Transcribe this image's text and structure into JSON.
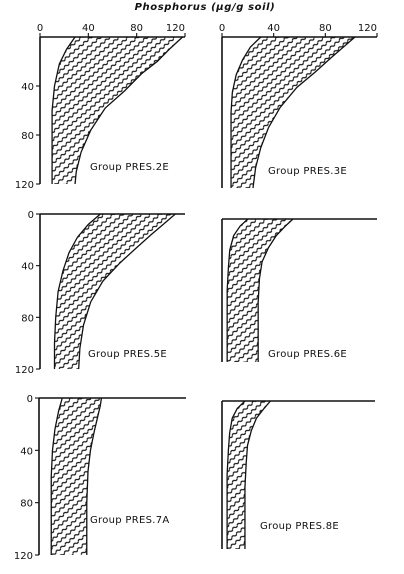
{
  "title": "Phosphorus (µg/g soil)",
  "colors": {
    "ink": "#111111",
    "paper": "#ffffff"
  },
  "chart_data": [
    {
      "type": "area",
      "title": "Group PRES.2E",
      "x_ticks": [
        "0",
        "40",
        "80",
        "120"
      ],
      "y_ticks": [
        "40",
        "80",
        "120"
      ],
      "xlim": [
        0,
        120
      ],
      "ylim": [
        0,
        120
      ],
      "left": [
        [
          29,
          0
        ],
        [
          22,
          10
        ],
        [
          16,
          22
        ],
        [
          12,
          40
        ],
        [
          10,
          60
        ],
        [
          10,
          80
        ],
        [
          10,
          120
        ]
      ],
      "right": [
        [
          118,
          0
        ],
        [
          107,
          10
        ],
        [
          97,
          20
        ],
        [
          84,
          30
        ],
        [
          70,
          44
        ],
        [
          54,
          58
        ],
        [
          42,
          76
        ],
        [
          34,
          94
        ],
        [
          30,
          110
        ],
        [
          29,
          120
        ]
      ]
    },
    {
      "type": "area",
      "title": "Group PRES.3E",
      "x_ticks": [
        "0",
        "40",
        "80",
        "120"
      ],
      "y_ticks": [],
      "xlim": [
        0,
        120
      ],
      "ylim": [
        0,
        120
      ],
      "left": [
        [
          30,
          0
        ],
        [
          22,
          8
        ],
        [
          16,
          18
        ],
        [
          11,
          30
        ],
        [
          8,
          44
        ],
        [
          7,
          60
        ],
        [
          7,
          80
        ],
        [
          7,
          120
        ]
      ],
      "right": [
        [
          103,
          0
        ],
        [
          94,
          8
        ],
        [
          85,
          16
        ],
        [
          72,
          28
        ],
        [
          58,
          40
        ],
        [
          45,
          56
        ],
        [
          36,
          72
        ],
        [
          30,
          88
        ],
        [
          26,
          104
        ],
        [
          24,
          120
        ]
      ]
    },
    {
      "type": "area",
      "title": "Group PRES.5E",
      "x_ticks": [],
      "y_ticks": [
        "0",
        "40",
        "80",
        "120"
      ],
      "xlim": [
        0,
        120
      ],
      "ylim": [
        0,
        120
      ],
      "left": [
        [
          50,
          0
        ],
        [
          40,
          8
        ],
        [
          31,
          18
        ],
        [
          24,
          30
        ],
        [
          19,
          44
        ],
        [
          15,
          60
        ],
        [
          13,
          80
        ],
        [
          12,
          100
        ],
        [
          12,
          120
        ]
      ],
      "right": [
        [
          112,
          0
        ],
        [
          102,
          8
        ],
        [
          92,
          16
        ],
        [
          80,
          26
        ],
        [
          66,
          38
        ],
        [
          52,
          52
        ],
        [
          42,
          68
        ],
        [
          36,
          86
        ],
        [
          33,
          104
        ],
        [
          32,
          120
        ]
      ]
    },
    {
      "type": "area",
      "title": "Group PRES.6E",
      "x_ticks": [],
      "y_ticks": [],
      "xlim": [
        0,
        120
      ],
      "ylim": [
        0,
        120
      ],
      "left": [
        [
          20,
          0
        ],
        [
          14,
          6
        ],
        [
          9,
          14
        ],
        [
          6,
          26
        ],
        [
          5,
          40
        ],
        [
          4,
          60
        ],
        [
          4,
          80
        ],
        [
          4,
          120
        ]
      ],
      "right": [
        [
          55,
          0
        ],
        [
          49,
          6
        ],
        [
          42,
          14
        ],
        [
          36,
          24
        ],
        [
          31,
          36
        ],
        [
          29,
          50
        ],
        [
          28,
          70
        ],
        [
          28,
          120
        ]
      ]
    },
    {
      "type": "area",
      "title": "Group PRES.7A",
      "x_ticks": [],
      "y_ticks": [
        "0",
        "40",
        "80",
        "120"
      ],
      "xlim": [
        0,
        120
      ],
      "ylim": [
        0,
        120
      ],
      "left": [
        [
          19,
          0
        ],
        [
          16,
          10
        ],
        [
          13,
          24
        ],
        [
          11,
          40
        ],
        [
          10,
          60
        ],
        [
          10,
          80
        ],
        [
          10,
          120
        ]
      ],
      "right": [
        [
          51,
          0
        ],
        [
          50,
          6
        ],
        [
          48,
          14
        ],
        [
          45,
          26
        ],
        [
          42,
          40
        ],
        [
          40,
          56
        ],
        [
          39,
          80
        ],
        [
          39,
          120
        ]
      ]
    },
    {
      "type": "area",
      "title": "Group PRES.8E",
      "x_ticks": [],
      "y_ticks": [],
      "xlim": [
        0,
        120
      ],
      "ylim": [
        0,
        120
      ],
      "left": [
        [
          18,
          0
        ],
        [
          12,
          6
        ],
        [
          8,
          14
        ],
        [
          6,
          26
        ],
        [
          5,
          40
        ],
        [
          4,
          60
        ],
        [
          4,
          80
        ],
        [
          4,
          120
        ]
      ],
      "right": [
        [
          38,
          0
        ],
        [
          33,
          6
        ],
        [
          27,
          14
        ],
        [
          23,
          24
        ],
        [
          20,
          36
        ],
        [
          19,
          50
        ],
        [
          18,
          70
        ],
        [
          18,
          120
        ]
      ]
    }
  ]
}
